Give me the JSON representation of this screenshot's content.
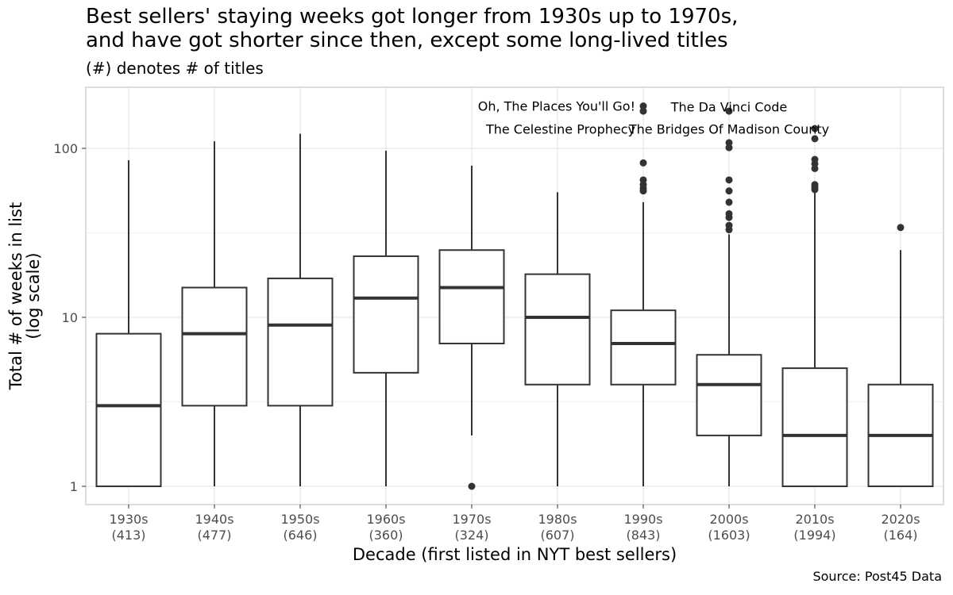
{
  "title_lines": [
    "Best sellers' staying weeks got longer from 1930s up to 1970s,",
    "and have got shorter since then, except some long-lived titles"
  ],
  "subtitle": "(#) denotes # of titles",
  "caption": "Source: Post45 Data",
  "chart_data": {
    "type": "boxplot",
    "xlabel": "Decade (first listed in NYT best sellers)",
    "ylabel": [
      "Total # of weeks in list",
      "(log scale)"
    ],
    "y_scale": "log10",
    "ylim": [
      0.8,
      230
    ],
    "y_ticks": [
      1,
      10,
      100
    ],
    "grid": true,
    "categories": [
      {
        "decade": "1930s",
        "count": "(413)"
      },
      {
        "decade": "1940s",
        "count": "(477)"
      },
      {
        "decade": "1950s",
        "count": "(646)"
      },
      {
        "decade": "1960s",
        "count": "(360)"
      },
      {
        "decade": "1970s",
        "count": "(324)"
      },
      {
        "decade": "1980s",
        "count": "(607)"
      },
      {
        "decade": "1990s",
        "count": "(843)"
      },
      {
        "decade": "2000s",
        "count": "(1603)"
      },
      {
        "decade": "2010s",
        "count": "(1994)"
      },
      {
        "decade": "2020s",
        "count": "(164)"
      }
    ],
    "boxes": [
      {
        "min": 1,
        "q1": 1,
        "median": 3,
        "q3": 8,
        "max": 85,
        "outliers": []
      },
      {
        "min": 1,
        "q1": 3,
        "median": 8,
        "q3": 15,
        "max": 110,
        "outliers": []
      },
      {
        "min": 1,
        "q1": 3,
        "median": 9,
        "q3": 17,
        "max": 122,
        "outliers": []
      },
      {
        "min": 1,
        "q1": 4.7,
        "median": 13,
        "q3": 23,
        "max": 97,
        "outliers": []
      },
      {
        "min": 2,
        "q1": 7,
        "median": 15,
        "q3": 25,
        "max": 79,
        "outliers": [
          1
        ]
      },
      {
        "min": 1,
        "q1": 4,
        "median": 10,
        "q3": 18,
        "max": 55,
        "outliers": []
      },
      {
        "min": 1,
        "q1": 4,
        "median": 7,
        "q3": 11,
        "max": 48,
        "outliers": [
          56,
          58,
          61,
          65,
          82,
          166,
          178
        ]
      },
      {
        "min": 1,
        "q1": 2,
        "median": 4,
        "q3": 6,
        "max": 31,
        "outliers": [
          33,
          35,
          39,
          41,
          48,
          56,
          65,
          101,
          108,
          166
        ]
      },
      {
        "min": 1,
        "q1": 1,
        "median": 2,
        "q3": 5,
        "max": 55,
        "outliers": [
          57,
          59,
          61,
          76,
          81,
          86,
          114,
          131
        ]
      },
      {
        "min": 1,
        "q1": 1,
        "median": 2,
        "q3": 4,
        "max": 25,
        "outliers": [
          34
        ]
      }
    ],
    "annotations": [
      {
        "text": "Oh, The Places You'll Go!",
        "cat": 6,
        "y": 178,
        "anchor": "end"
      },
      {
        "text": "The Celestine Prophecy",
        "cat": 6,
        "y": 130,
        "anchor": "end"
      },
      {
        "text": "The Da Vinci Code",
        "cat": 7,
        "y": 176,
        "anchor": "middle"
      },
      {
        "text": "The Bridges Of Madison County",
        "cat": 7,
        "y": 130,
        "anchor": "middle"
      }
    ]
  }
}
